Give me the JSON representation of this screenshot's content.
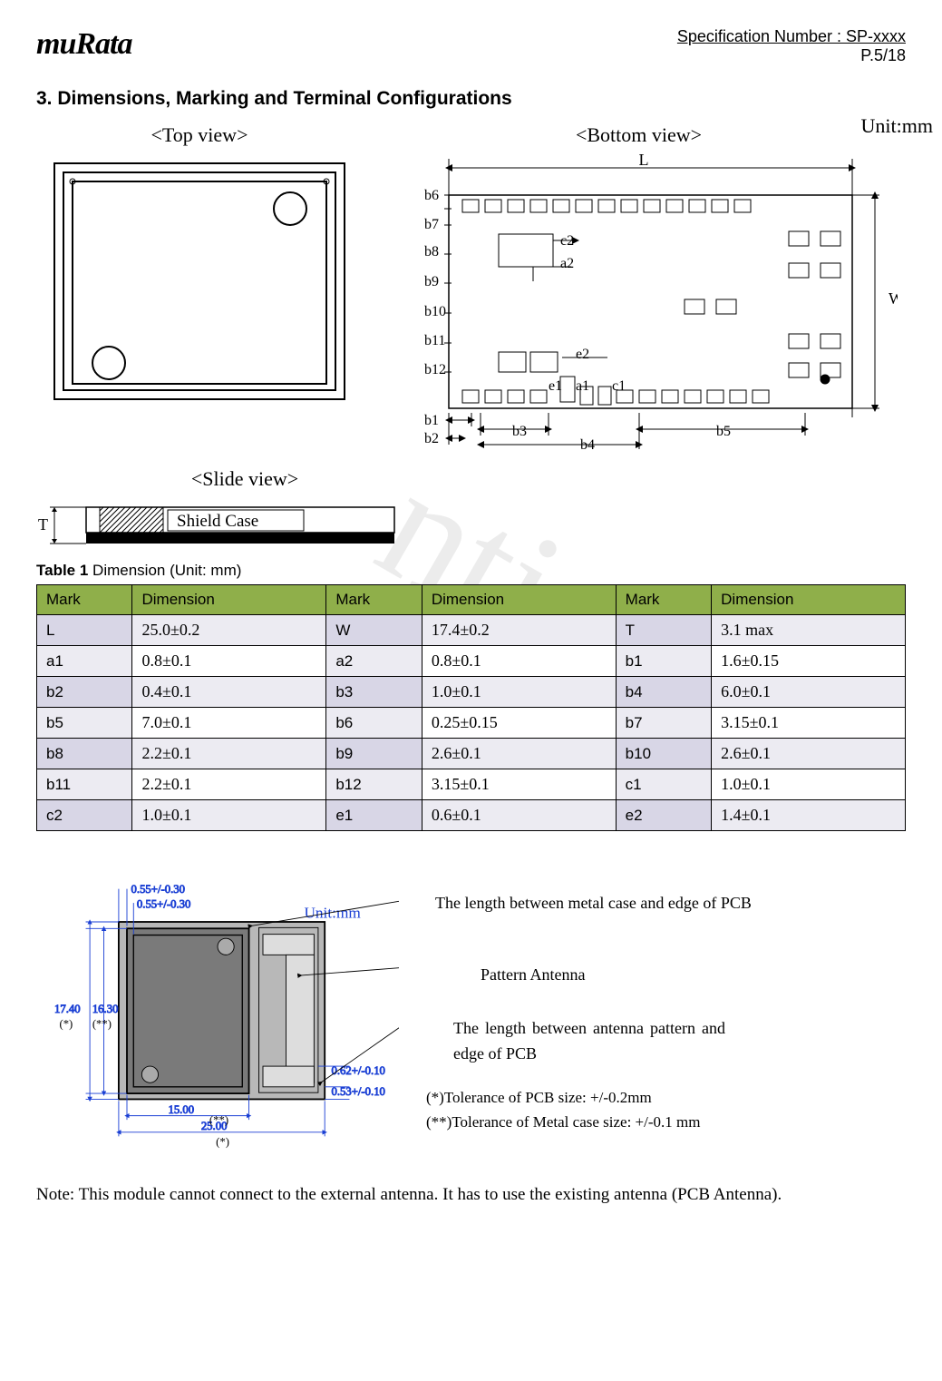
{
  "header": {
    "logo": "muRata",
    "spec_number": "Specification  Number  :  SP-xxxx",
    "page": "P.5/18"
  },
  "section_title": "3.  Dimensions, Marking and Terminal Configurations",
  "watermark_fragment": "nti",
  "figures": {
    "top_view_label": "<Top view>",
    "bottom_view_label": "<Bottom view>",
    "slide_view_label": "<Slide view>",
    "unit_label": "Unit:mm",
    "shield_text": "Shield Case",
    "bottom_labels": {
      "left_marks": [
        "b6",
        "b7",
        "b8",
        "b9",
        "b10",
        "b11",
        "b12",
        "b1",
        "b2"
      ],
      "inner_marks": [
        "c2",
        "a2",
        "e2",
        "e1",
        "a1",
        "c1"
      ],
      "bottom_marks": [
        "b3",
        "b4",
        "b5"
      ],
      "top_dim": "L",
      "right_dim": "W"
    }
  },
  "table": {
    "caption_bold": "Table 1 ",
    "caption_rest": "Dimension (Unit: mm)",
    "headers": [
      "Mark",
      "Dimension",
      "Mark",
      "Dimension",
      "Mark",
      "Dimension"
    ],
    "header_bg": "#8faf4a",
    "odd_row_bg": "#ecebf2",
    "even_row_bg": "#ffffff",
    "mark_cell_bg_odd": "#d8d6e6",
    "mark_cell_bg_even": "#ecebf2",
    "rows": [
      [
        "L",
        "25.0±0.2",
        "W",
        "17.4±0.2",
        "T",
        "3.1 max"
      ],
      [
        "a1",
        "0.8±0.1",
        "a2",
        "0.8±0.1",
        "b1",
        "1.6±0.15"
      ],
      [
        "b2",
        "0.4±0.1",
        "b3",
        "1.0±0.1",
        "b4",
        "6.0±0.1"
      ],
      [
        "b5",
        "7.0±0.1",
        "b6",
        "0.25±0.15",
        "b7",
        "3.15±0.1"
      ],
      [
        "b8",
        "2.2±0.1",
        "b9",
        "2.6±0.1",
        "b10",
        "2.6±0.1"
      ],
      [
        "b11",
        "2.2±0.1",
        "b12",
        "3.15±0.1",
        "c1",
        "1.0±0.1"
      ],
      [
        "c2",
        "1.0±0.1",
        "e1",
        "0.6±0.1",
        "e2",
        "1.4±0.1"
      ]
    ]
  },
  "detail": {
    "unit": "Unit:mm",
    "top_dims": [
      "0.55+/-0.30",
      "0.55+/-0.30"
    ],
    "left_dims": [
      "17.40",
      "16.30"
    ],
    "left_star1": "(*)",
    "left_star2": "(**)",
    "bottom_dim1": "15.00",
    "bottom_star1": "(**)",
    "bottom_dim2": "25.00",
    "bottom_star2": "(*)",
    "right_dims": [
      "0.62+/-0.10",
      "0.53+/-0.10"
    ],
    "annotations": {
      "a1": "The length between metal case and edge of PCB",
      "a2": "Pattern Antenna",
      "a3": "The length between antenna pattern and edge of PCB",
      "tol1": "(*)Tolerance of PCB size: +/-0.2mm",
      "tol2": "(**)Tolerance of Metal case size: +/-0.1 mm"
    },
    "svg_colors": {
      "pcb": "#b8b8b8",
      "case": "#7a7a7a",
      "dim_text": "#1a3fd4"
    }
  },
  "note": "Note: This module cannot connect to the external antenna. It has to use the existing antenna (PCB Antenna)."
}
